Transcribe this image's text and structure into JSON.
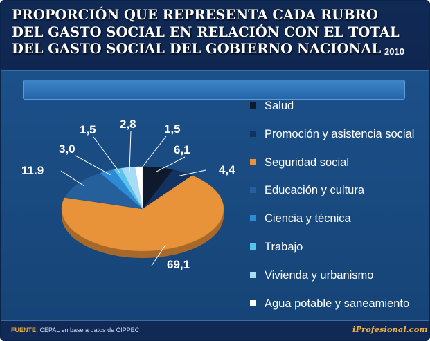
{
  "header": {
    "title": "PROPORCIÓN QUE REPRESENTA CADA RUBRO DEL GASTO SOCIAL EN RELACIÓN CON EL TOTAL DEL GASTO SOCIAL DEL GOBIERNO NACIONAL",
    "year": "2010"
  },
  "chart_data": {
    "type": "pie",
    "title": "Proporción que representa cada rubro del gasto social en relación con el total del gasto social del Gobierno Nacional",
    "year": "2010",
    "unit": "%",
    "slices": [
      {
        "name": "Salud",
        "value": 6.1,
        "label": "6,1",
        "color": "#0e1a2c"
      },
      {
        "name": "Promoción y asistencia social",
        "value": 4.4,
        "label": "4,4",
        "color": "#12325f"
      },
      {
        "name": "Seguridad social",
        "value": 69.1,
        "label": "69,1",
        "color": "#e8923a"
      },
      {
        "name": "Educación y cultura",
        "value": 11.9,
        "label": "11.9",
        "color": "#255f9c"
      },
      {
        "name": "Ciencia y técnica",
        "value": 3.0,
        "label": "3,0",
        "color": "#2d8ad5"
      },
      {
        "name": "Trabajo",
        "value": 1.5,
        "label": "1,5",
        "color": "#58c3ee"
      },
      {
        "name": "Vivienda y urbanismo",
        "value": 2.8,
        "label": "2,8",
        "color": "#a7dcf6"
      },
      {
        "name": "Agua potable y saneamiento",
        "value": 1.5,
        "label": "1,5",
        "color": "#ffffff"
      }
    ],
    "legend_position": "right"
  },
  "legend": {
    "items": [
      {
        "label": "Salud",
        "color": "#0e1a2c"
      },
      {
        "label": "Promoción y asistencia social",
        "color": "#12325f"
      },
      {
        "label": "Seguridad social",
        "color": "#e8923a"
      },
      {
        "label": "Educación y cultura",
        "color": "#255f9c"
      },
      {
        "label": "Ciencia y técnica",
        "color": "#2d8ad5"
      },
      {
        "label": "Trabajo",
        "color": "#58c3ee"
      },
      {
        "label": "Vivienda y urbanismo",
        "color": "#a7dcf6"
      },
      {
        "label": "Agua potable y saneamiento",
        "color": "#ffffff"
      }
    ]
  },
  "footer": {
    "source_prefix": "FUENTE:",
    "source_text": "CEPAL en base a datos de CIPPEC",
    "brand": "iProfesional.com"
  }
}
